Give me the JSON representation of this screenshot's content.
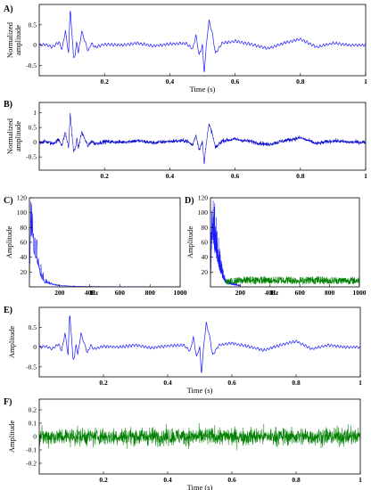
{
  "colors": {
    "blue": "#1a1aff",
    "blue_dense": "#0000cc",
    "green": "#008000"
  },
  "chart_data": [
    {
      "id": "A",
      "panel_label": "A)",
      "type": "line",
      "ylabel_line1": "Normalized",
      "ylabel_line2": "amplitude",
      "xlabel": "Time (s)",
      "xlim": [
        0,
        1
      ],
      "ylim": [
        -0.75,
        1.0
      ],
      "xticks": [
        "0.2",
        "0.4",
        "0.6",
        "0.8",
        "1"
      ],
      "xtick_values": [
        0.2,
        0.4,
        0.6,
        0.8,
        1.0
      ],
      "yticks": [
        "-0.5",
        "0",
        "0.5"
      ],
      "ytick_values": [
        -0.5,
        0,
        0.5
      ],
      "series": [
        {
          "color": "#1a1aff",
          "style": "clean",
          "x": [
            0,
            0.02,
            0.04,
            0.06,
            0.07,
            0.08,
            0.09,
            0.095,
            0.1,
            0.105,
            0.11,
            0.115,
            0.12,
            0.13,
            0.14,
            0.15,
            0.16,
            0.17,
            0.2,
            0.25,
            0.3,
            0.35,
            0.4,
            0.45,
            0.47,
            0.48,
            0.49,
            0.5,
            0.505,
            0.51,
            0.515,
            0.52,
            0.53,
            0.54,
            0.56,
            0.6,
            0.65,
            0.7,
            0.75,
            0.8,
            0.85,
            0.9,
            0.95,
            1.0
          ],
          "y": [
            0.0,
            0.02,
            -0.05,
            0.08,
            -0.1,
            0.35,
            -0.2,
            0.95,
            0.3,
            -0.3,
            -0.25,
            0.1,
            -0.2,
            0.35,
            0.1,
            -0.15,
            0.05,
            -0.05,
            0.02,
            0.0,
            0.05,
            -0.02,
            0.03,
            0.05,
            -0.1,
            0.25,
            -0.25,
            0.0,
            -0.7,
            -0.2,
            0.25,
            0.6,
            0.3,
            -0.2,
            0.05,
            0.1,
            0.02,
            -0.08,
            0.05,
            0.15,
            -0.05,
            0.05,
            0.0,
            0.0
          ]
        }
      ]
    },
    {
      "id": "B",
      "panel_label": "B)",
      "type": "line",
      "ylabel_line1": "Normalized",
      "ylabel_line2": "amplitude",
      "xlabel": "",
      "xlim": [
        0,
        1
      ],
      "ylim": [
        -0.95,
        1.35
      ],
      "xticks": [
        "0.2",
        "0.4",
        "0.6",
        "0.8",
        "1"
      ],
      "xtick_values": [
        0.2,
        0.4,
        0.6,
        0.8,
        1.0
      ],
      "yticks": [
        "-0.5",
        "0",
        "0.5",
        "1"
      ],
      "ytick_values": [
        -0.5,
        0,
        0.5,
        1
      ],
      "series": [
        {
          "color": "#0000cc",
          "style": "noisy",
          "x": [
            0,
            0.02,
            0.04,
            0.06,
            0.07,
            0.08,
            0.09,
            0.095,
            0.1,
            0.105,
            0.11,
            0.115,
            0.12,
            0.13,
            0.14,
            0.15,
            0.16,
            0.17,
            0.2,
            0.25,
            0.3,
            0.35,
            0.4,
            0.45,
            0.47,
            0.48,
            0.49,
            0.5,
            0.505,
            0.51,
            0.515,
            0.52,
            0.53,
            0.54,
            0.56,
            0.6,
            0.65,
            0.7,
            0.75,
            0.8,
            0.85,
            0.9,
            0.95,
            1.0
          ],
          "y": [
            0.0,
            0.02,
            -0.05,
            0.08,
            -0.1,
            0.35,
            -0.2,
            1.0,
            0.3,
            -0.3,
            -0.25,
            0.1,
            -0.2,
            0.35,
            0.1,
            -0.15,
            0.05,
            -0.05,
            0.02,
            0.0,
            0.05,
            -0.02,
            0.03,
            0.05,
            -0.1,
            0.25,
            -0.25,
            0.0,
            -0.75,
            -0.2,
            0.25,
            0.6,
            0.3,
            -0.2,
            0.05,
            0.1,
            0.02,
            -0.08,
            0.05,
            0.15,
            -0.05,
            0.05,
            0.0,
            0.0
          ]
        }
      ]
    },
    {
      "id": "C",
      "panel_label": "C)",
      "type": "line",
      "ylabel": "Amplitude",
      "xlabel": "Hz",
      "xlim": [
        0,
        1000
      ],
      "ylim": [
        0,
        120
      ],
      "xticks": [
        "200",
        "400",
        "600",
        "800",
        "1000"
      ],
      "xtick_values": [
        200,
        400,
        600,
        800,
        1000
      ],
      "yticks": [
        "20",
        "40",
        "60",
        "80",
        "100",
        "120"
      ],
      "ytick_values": [
        20,
        40,
        60,
        80,
        100,
        120
      ],
      "series": [
        {
          "color": "#1a1aff",
          "style": "spectrum",
          "x": [
            0,
            10,
            20,
            30,
            40,
            50,
            60,
            70,
            80,
            90,
            100,
            120,
            140,
            160,
            180,
            200,
            250,
            300,
            400,
            600,
            800,
            1000
          ],
          "y": [
            10,
            115,
            100,
            80,
            70,
            55,
            40,
            30,
            20,
            15,
            10,
            7,
            5,
            4,
            3,
            2,
            1.5,
            1,
            0.5,
            0.3,
            0.2,
            0.2
          ]
        }
      ]
    },
    {
      "id": "D",
      "panel_label": "D)",
      "type": "line",
      "ylabel": "Amplitude",
      "xlabel": "Hz",
      "xlim": [
        0,
        1000
      ],
      "ylim": [
        0,
        120
      ],
      "xticks": [
        "200",
        "400",
        "600",
        "800",
        "1000"
      ],
      "xtick_values": [
        200,
        400,
        600,
        800,
        1000
      ],
      "yticks": [
        "20",
        "40",
        "60",
        "80",
        "100",
        "120"
      ],
      "ytick_values": [
        20,
        40,
        60,
        80,
        100,
        120
      ],
      "series": [
        {
          "color": "#1a1aff",
          "style": "spectrum",
          "x": [
            0,
            10,
            20,
            30,
            40,
            50,
            60,
            70,
            80,
            90,
            100,
            120,
            140,
            160,
            180,
            200
          ],
          "y": [
            10,
            115,
            100,
            80,
            70,
            55,
            40,
            30,
            20,
            15,
            10,
            7,
            5,
            4,
            3,
            2
          ]
        },
        {
          "color": "#008000",
          "style": "noisy_flat",
          "x": [
            100,
            200,
            300,
            400,
            500,
            600,
            700,
            800,
            900,
            1000
          ],
          "y": [
            8,
            10,
            11,
            10,
            11,
            10,
            11,
            10,
            10,
            10
          ]
        }
      ]
    },
    {
      "id": "E",
      "panel_label": "E)",
      "type": "line",
      "ylabel": "Amplitude",
      "xlabel": "Time (s)",
      "xlim": [
        0,
        1
      ],
      "ylim": [
        -0.75,
        1.0
      ],
      "xticks": [
        "0.2",
        "0.4",
        "0.6",
        "0.8",
        "1"
      ],
      "xtick_values": [
        0.2,
        0.4,
        0.6,
        0.8,
        1.0
      ],
      "yticks": [
        "-0.5",
        "0",
        "0.5"
      ],
      "ytick_values": [
        -0.5,
        0,
        0.5
      ],
      "series": [
        {
          "color": "#1a1aff",
          "style": "clean",
          "x": [
            0,
            0.02,
            0.04,
            0.06,
            0.07,
            0.08,
            0.09,
            0.095,
            0.1,
            0.105,
            0.11,
            0.115,
            0.12,
            0.13,
            0.14,
            0.15,
            0.16,
            0.17,
            0.2,
            0.25,
            0.3,
            0.35,
            0.4,
            0.45,
            0.47,
            0.48,
            0.49,
            0.5,
            0.505,
            0.51,
            0.515,
            0.52,
            0.53,
            0.54,
            0.56,
            0.6,
            0.65,
            0.7,
            0.75,
            0.8,
            0.85,
            0.9,
            0.95,
            1.0
          ],
          "y": [
            0.0,
            0.02,
            -0.05,
            0.08,
            -0.1,
            0.35,
            -0.2,
            0.9,
            0.3,
            -0.3,
            -0.25,
            0.1,
            -0.2,
            0.35,
            0.1,
            -0.15,
            0.05,
            -0.05,
            0.02,
            0.0,
            0.05,
            -0.02,
            0.03,
            0.05,
            -0.1,
            0.25,
            -0.25,
            0.0,
            -0.7,
            -0.2,
            0.25,
            0.6,
            0.3,
            -0.2,
            0.05,
            0.1,
            0.02,
            -0.08,
            0.05,
            0.15,
            -0.05,
            0.05,
            0.0,
            0.0
          ]
        }
      ]
    },
    {
      "id": "F",
      "panel_label": "F)",
      "type": "line",
      "ylabel": "Amplitude",
      "xlabel": "Time (s)",
      "xlim": [
        0,
        1
      ],
      "ylim": [
        -0.28,
        0.28
      ],
      "xticks": [
        "0.2",
        "0.4",
        "0.6",
        "0.8",
        "1"
      ],
      "xtick_values": [
        0.2,
        0.4,
        0.6,
        0.8,
        1.0
      ],
      "yticks": [
        "-0.2",
        "-0.1",
        "0",
        "0.1",
        "0.2"
      ],
      "ytick_values": [
        -0.2,
        -0.1,
        0,
        0.1,
        0.2
      ],
      "series": [
        {
          "color": "#008000",
          "style": "noise",
          "x": [
            0,
            1
          ],
          "y": [
            0,
            0
          ]
        }
      ]
    }
  ]
}
